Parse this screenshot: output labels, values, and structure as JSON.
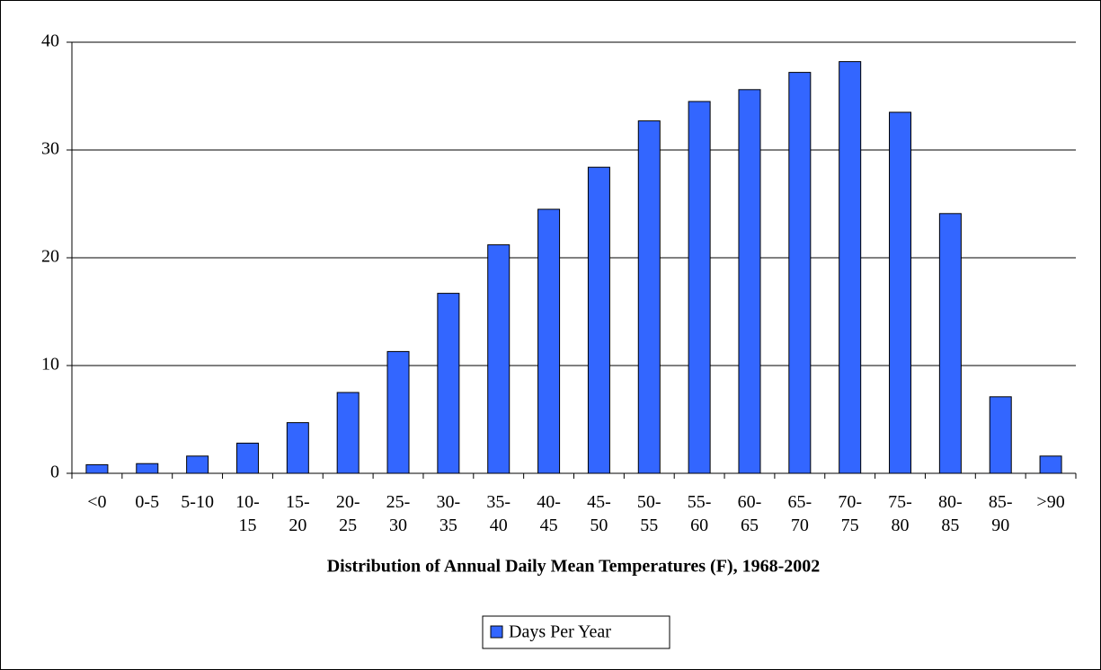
{
  "chart_data": {
    "type": "bar",
    "xlabel": "Distribution of Annual Daily Mean Temperatures (F), 1968-2002",
    "categories": [
      "<0",
      "0-5",
      "5-10",
      "10-15",
      "15-20",
      "20-25",
      "25-30",
      "30-35",
      "35-40",
      "40-45",
      "45-50",
      "50-55",
      "55-60",
      "60-65",
      "65-70",
      "70-75",
      "75-80",
      "80-85",
      "85-90",
      ">90"
    ],
    "series": [
      {
        "name": "Days Per Year",
        "color": "#3366ff",
        "values": [
          0.8,
          0.9,
          1.6,
          2.8,
          4.7,
          7.5,
          11.3,
          16.7,
          21.2,
          24.5,
          28.4,
          32.7,
          34.5,
          35.6,
          37.2,
          38.2,
          33.5,
          24.1,
          7.1,
          1.6
        ]
      }
    ],
    "ylim": [
      0,
      40
    ],
    "yticks": [
      0,
      10,
      20,
      30,
      40
    ],
    "grid": true,
    "legend": "bottom"
  }
}
